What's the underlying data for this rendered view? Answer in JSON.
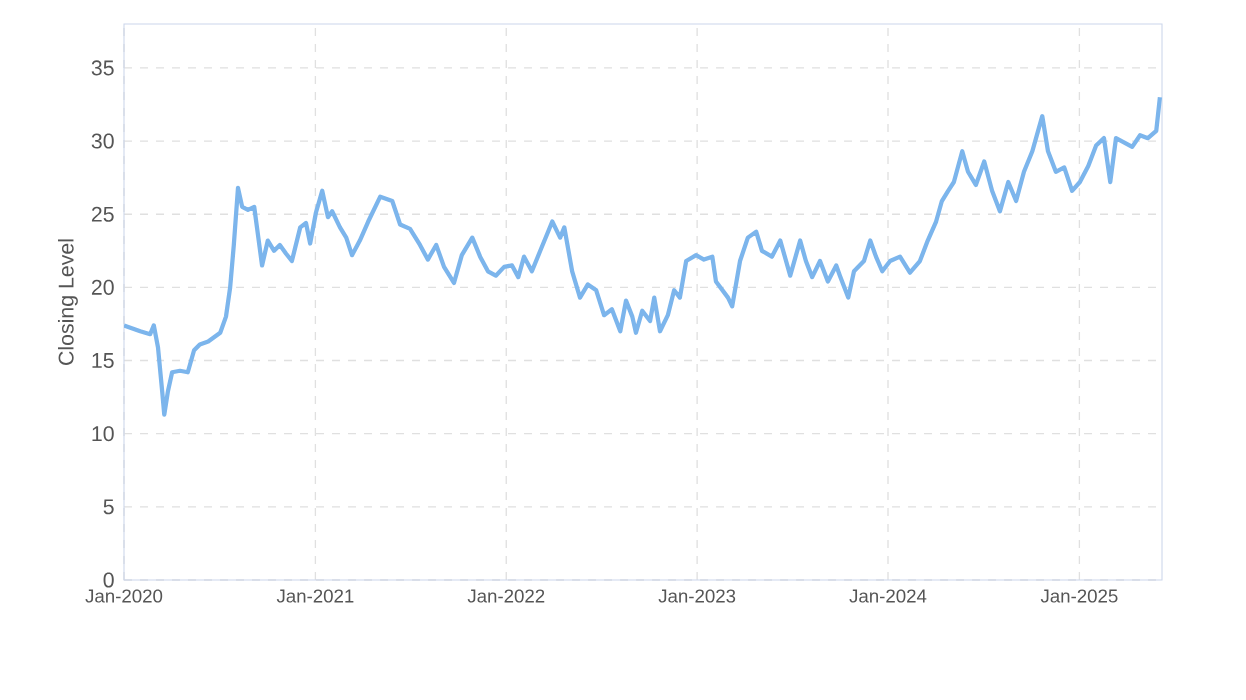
{
  "chart_data": {
    "type": "line",
    "ylabel": "Closing Level",
    "grid": true,
    "marker": "none",
    "line_style": "solid",
    "xlim": [
      "2020-01-01",
      "2025-06-08"
    ],
    "ylim": [
      0,
      38
    ],
    "xticks": [
      {
        "value": "2020-01-01",
        "label": "Jan-2020"
      },
      {
        "value": "2021-01-01",
        "label": "Jan-2021"
      },
      {
        "value": "2022-01-01",
        "label": "Jan-2022"
      },
      {
        "value": "2023-01-01",
        "label": "Jan-2023"
      },
      {
        "value": "2024-01-01",
        "label": "Jan-2024"
      },
      {
        "value": "2025-01-01",
        "label": "Jan-2025"
      }
    ],
    "yticks": [
      0,
      5,
      10,
      15,
      20,
      25,
      30,
      35
    ],
    "x": [
      "2020-01-01",
      "2020-02-01",
      "2020-02-20",
      "2020-02-27",
      "2020-03-06",
      "2020-03-14",
      "2020-03-18",
      "2020-03-25",
      "2020-04-02",
      "2020-04-17",
      "2020-05-02",
      "2020-05-14",
      "2020-05-25",
      "2020-06-10",
      "2020-07-03",
      "2020-07-14",
      "2020-07-22",
      "2020-07-29",
      "2020-08-06",
      "2020-08-14",
      "2020-08-25",
      "2020-09-06",
      "2020-09-21",
      "2020-10-02",
      "2020-10-14",
      "2020-10-25",
      "2020-11-06",
      "2020-11-17",
      "2020-12-03",
      "2020-12-14",
      "2020-12-22",
      "2021-01-02",
      "2021-01-14",
      "2021-01-25",
      "2021-02-02",
      "2021-02-17",
      "2021-03-01",
      "2021-03-12",
      "2021-03-27",
      "2021-04-12",
      "2021-05-05",
      "2021-05-28",
      "2021-06-12",
      "2021-07-01",
      "2021-07-20",
      "2021-08-04",
      "2021-08-20",
      "2021-09-04",
      "2021-09-23",
      "2021-10-08",
      "2021-10-28",
      "2021-11-12",
      "2021-11-27",
      "2021-12-12",
      "2021-12-28",
      "2022-01-12",
      "2022-01-24",
      "2022-02-04",
      "2022-02-19",
      "2022-03-07",
      "2022-03-22",
      "2022-03-30",
      "2022-04-14",
      "2022-04-22",
      "2022-05-07",
      "2022-05-22",
      "2022-06-06",
      "2022-06-22",
      "2022-07-07",
      "2022-07-22",
      "2022-08-07",
      "2022-08-18",
      "2022-08-30",
      "2022-09-06",
      "2022-09-18",
      "2022-10-03",
      "2022-10-11",
      "2022-10-22",
      "2022-11-06",
      "2022-11-18",
      "2022-11-29",
      "2022-12-11",
      "2022-12-30",
      "2023-01-14",
      "2023-01-30",
      "2023-02-06",
      "2023-03-01",
      "2023-03-09",
      "2023-03-24",
      "2023-04-08",
      "2023-04-24",
      "2023-05-05",
      "2023-05-24",
      "2023-06-09",
      "2023-06-28",
      "2023-07-17",
      "2023-07-28",
      "2023-08-09",
      "2023-08-24",
      "2023-09-08",
      "2023-09-24",
      "2023-10-01",
      "2023-10-17",
      "2023-10-28",
      "2023-11-16",
      "2023-11-28",
      "2023-12-09",
      "2023-12-21",
      "2024-01-05",
      "2024-01-24",
      "2024-02-12",
      "2024-03-02",
      "2024-03-17",
      "2024-04-02",
      "2024-04-13",
      "2024-04-25",
      "2024-05-06",
      "2024-05-22",
      "2024-06-02",
      "2024-06-17",
      "2024-07-03",
      "2024-07-18",
      "2024-08-02",
      "2024-08-18",
      "2024-09-02",
      "2024-09-17",
      "2024-10-03",
      "2024-10-14",
      "2024-10-22",
      "2024-11-02",
      "2024-11-17",
      "2024-12-03",
      "2024-12-18",
      "2025-01-02",
      "2025-01-18",
      "2025-02-02",
      "2025-02-17",
      "2025-03-01",
      "2025-03-12",
      "2025-03-28",
      "2025-04-12",
      "2025-04-27",
      "2025-05-12",
      "2025-05-28",
      "2025-06-04"
    ],
    "series": [
      {
        "color": "#7cb5ec",
        "values": [
          17.4,
          17.0,
          16.8,
          17.4,
          15.9,
          12.9,
          11.3,
          12.9,
          14.2,
          14.3,
          14.2,
          15.7,
          16.1,
          16.3,
          16.9,
          18.0,
          20.0,
          22.9,
          26.8,
          25.5,
          25.3,
          25.5,
          21.5,
          23.2,
          22.5,
          22.9,
          22.3,
          21.8,
          24.1,
          24.4,
          23.0,
          25.1,
          26.6,
          24.8,
          25.2,
          24.1,
          23.4,
          22.2,
          23.2,
          24.5,
          26.2,
          25.9,
          24.3,
          24.0,
          22.9,
          21.9,
          22.9,
          21.4,
          20.3,
          22.2,
          23.4,
          22.1,
          21.1,
          20.8,
          21.4,
          21.5,
          20.7,
          22.1,
          21.1,
          22.5,
          23.8,
          24.5,
          23.4,
          24.1,
          21.1,
          19.3,
          20.2,
          19.8,
          18.1,
          18.5,
          17.0,
          19.1,
          18.0,
          16.9,
          18.4,
          17.7,
          19.3,
          17.0,
          18.1,
          19.8,
          19.3,
          21.8,
          22.2,
          21.9,
          22.1,
          20.4,
          19.3,
          18.7,
          21.8,
          23.4,
          23.8,
          22.5,
          22.1,
          23.2,
          20.8,
          23.2,
          21.8,
          20.7,
          21.8,
          20.4,
          21.5,
          20.8,
          19.3,
          21.1,
          21.8,
          23.2,
          22.1,
          21.1,
          21.8,
          22.1,
          21.0,
          21.8,
          23.2,
          24.5,
          25.9,
          26.6,
          27.2,
          29.3,
          27.9,
          27.0,
          28.6,
          26.6,
          25.2,
          27.2,
          25.9,
          27.9,
          29.3,
          30.7,
          31.7,
          29.3,
          27.9,
          28.2,
          26.6,
          27.2,
          28.3,
          29.7,
          30.2,
          27.2,
          30.2,
          29.9,
          29.6,
          30.4,
          30.2,
          30.7,
          33.0
        ]
      }
    ]
  }
}
